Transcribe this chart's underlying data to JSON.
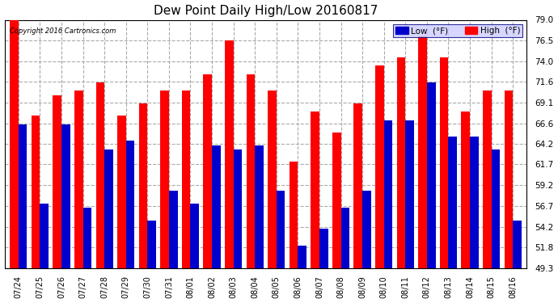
{
  "title": "Dew Point Daily High/Low 20160817",
  "copyright": "Copyright 2016 Cartronics.com",
  "dates": [
    "07/24",
    "07/25",
    "07/26",
    "07/27",
    "07/28",
    "07/29",
    "07/30",
    "07/31",
    "08/01",
    "08/02",
    "08/03",
    "08/04",
    "08/05",
    "08/06",
    "08/07",
    "08/08",
    "08/09",
    "08/10",
    "08/11",
    "08/12",
    "08/13",
    "08/14",
    "08/15",
    "08/16"
  ],
  "high": [
    79.0,
    67.5,
    70.0,
    70.5,
    71.5,
    67.5,
    69.0,
    70.5,
    70.5,
    72.5,
    76.5,
    72.5,
    70.5,
    62.0,
    68.0,
    65.5,
    69.0,
    73.5,
    74.5,
    77.0,
    74.5,
    68.0,
    70.5,
    70.5
  ],
  "low": [
    66.5,
    57.0,
    66.5,
    56.5,
    63.5,
    64.5,
    55.0,
    58.5,
    57.0,
    64.0,
    63.5,
    64.0,
    58.5,
    52.0,
    54.0,
    56.5,
    58.5,
    67.0,
    67.0,
    71.5,
    65.0,
    65.0,
    63.5,
    55.0
  ],
  "high_color": "#FF0000",
  "low_color": "#0000CC",
  "bg_color": "#FFFFFF",
  "plot_bg_color": "#FFFFFF",
  "grid_color": "#AAAAAA",
  "ylim_min": 49.3,
  "ylim_max": 79.0,
  "yticks": [
    49.3,
    51.8,
    54.2,
    56.7,
    59.2,
    61.7,
    64.2,
    66.6,
    69.1,
    71.6,
    74.0,
    76.5,
    79.0
  ],
  "legend_low_label": "Low  (°F)",
  "legend_high_label": "High  (°F)"
}
